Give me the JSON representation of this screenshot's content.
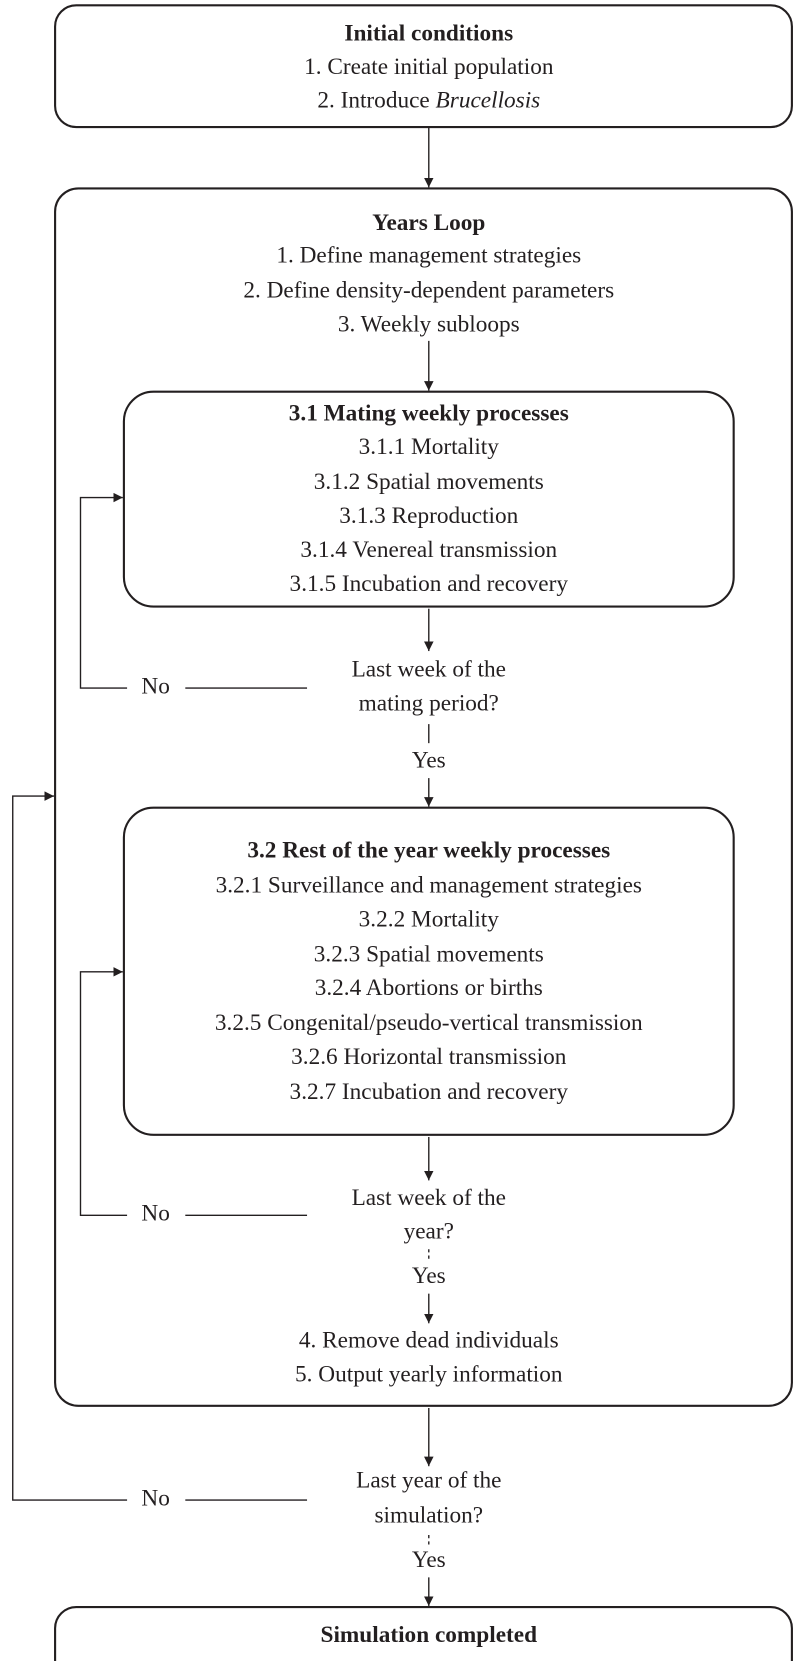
{
  "initial": {
    "title": "Initial conditions",
    "steps": [
      "1. Create initial population"
    ],
    "intro": "2. Introduce ",
    "intro_italic": "Brucellosis"
  },
  "years_loop": {
    "title": "Years Loop",
    "steps": [
      "1. Define management strategies",
      "2. Define density-dependent parameters",
      "3. Weekly subloops"
    ]
  },
  "mating": {
    "title": "3.1 Mating weekly processes",
    "steps": [
      "3.1.1 Mortality",
      "3.1.2 Spatial movements",
      "3.1.3 Reproduction",
      "3.1.4 Venereal transmission",
      "3.1.5 Incubation and recovery"
    ]
  },
  "mating_check": {
    "question": [
      "Last week of the",
      "mating period?"
    ],
    "no": "No",
    "yes": "Yes"
  },
  "rest": {
    "title": "3.2 Rest of the year weekly processes",
    "steps": [
      "3.2.1 Surveillance and management strategies",
      "3.2.2 Mortality",
      "3.2.3 Spatial movements",
      "3.2.4 Abortions or births",
      "3.2.5 Congenital/pseudo-vertical transmission",
      "3.2.6 Horizontal transmission",
      "3.2.7 Incubation and recovery"
    ]
  },
  "rest_check": {
    "question": [
      "Last week of the",
      "year?"
    ],
    "no": "No",
    "yes": "Yes"
  },
  "yearly": {
    "steps": [
      "4. Remove dead individuals",
      "5. Output yearly information"
    ]
  },
  "year_check": {
    "question": [
      "Last year of the",
      "simulation?"
    ],
    "no": "No",
    "yes": "Yes"
  },
  "final": {
    "title": "Simulation completed"
  }
}
